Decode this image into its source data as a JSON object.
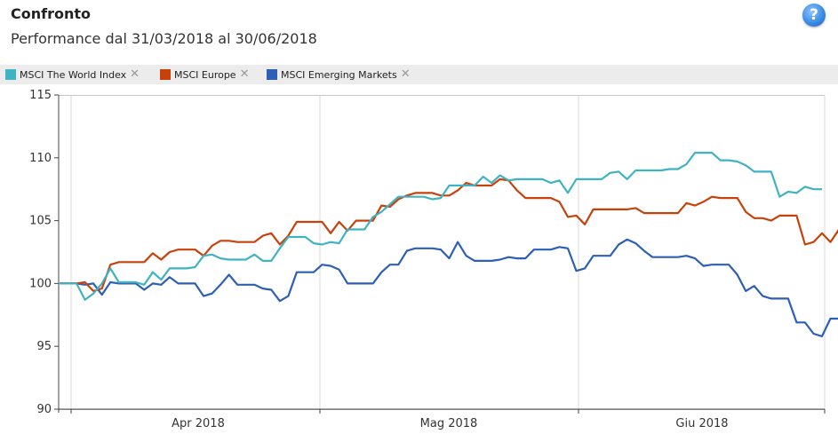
{
  "header": {
    "title": "Confronto",
    "subtitle": "Performance dal 31/03/2018 al 30/06/2018",
    "help_icon": "?"
  },
  "legend": [
    {
      "label": "MSCI The World Index",
      "color": "#3fb3c2",
      "remove_icon": "✕"
    },
    {
      "label": "MSCI Europe",
      "color": "#c8410b",
      "remove_icon": "✕"
    },
    {
      "label": "MSCI Emerging Markets",
      "color": "#2c5fb5",
      "remove_icon": "✕"
    }
  ],
  "chart_data": {
    "type": "line",
    "ylim": [
      90,
      115
    ],
    "yticks": [
      "90",
      "95",
      "100",
      "105",
      "110",
      "115"
    ],
    "xticks": [
      "Apr 2018",
      "Mag 2018",
      "Giu 2018"
    ],
    "grid": "vertical at month starts",
    "series": [
      {
        "name": "MSCI The World Index",
        "color": "#3fb3c2",
        "values": [
          100,
          100,
          100,
          98.7,
          99.2,
          100,
          101.2,
          100.1,
          100.1,
          100.1,
          99.9,
          100.9,
          100.3,
          101.2,
          101.2,
          101.2,
          101.3,
          102.2,
          102.3,
          102,
          101.9,
          101.9,
          101.9,
          102.3,
          101.8,
          101.8,
          102.8,
          103.7,
          103.7,
          103.7,
          103.2,
          103.1,
          103.3,
          103.2,
          104.3,
          104.3,
          104.3,
          105.3,
          105.7,
          106.3,
          106.9,
          106.9,
          106.9,
          106.9,
          106.7,
          106.8,
          107.8,
          107.8,
          107.8,
          107.8,
          108.5,
          108,
          108.6,
          108.2,
          108.3,
          108.3,
          108.3,
          108.3,
          108,
          108.2,
          107.2,
          108.3,
          108.3,
          108.3,
          108.3,
          108.8,
          108.9,
          108.3,
          109,
          109,
          109,
          109,
          109.1,
          109.1,
          109.5,
          110.4,
          110.4,
          110.4,
          109.8,
          109.8,
          109.7,
          109.4,
          108.9,
          108.9,
          108.9,
          106.9,
          107.3,
          107.2,
          107.7,
          107.5,
          107.5
        ]
      },
      {
        "name": "MSCI Europe",
        "color": "#c8410b",
        "values": [
          100,
          100,
          100,
          100.1,
          99.4,
          99.6,
          101.5,
          101.7,
          101.7,
          101.7,
          101.7,
          102.4,
          101.9,
          102.5,
          102.7,
          102.7,
          102.7,
          102.2,
          103,
          103.4,
          103.4,
          103.3,
          103.3,
          103.3,
          103.8,
          104,
          103.1,
          103.8,
          104.9,
          104.9,
          104.9,
          104.9,
          104,
          104.9,
          104.2,
          105,
          105,
          105,
          106.2,
          106.1,
          106.7,
          107,
          107.2,
          107.2,
          107.2,
          107,
          107,
          107.4,
          108,
          107.8,
          107.8,
          107.8,
          108.3,
          108.2,
          107.4,
          106.8,
          106.8,
          106.8,
          106.8,
          106.5,
          105.3,
          105.4,
          104.7,
          105.9,
          105.9,
          105.9,
          105.9,
          105.9,
          106,
          105.6,
          105.6,
          105.6,
          105.6,
          105.6,
          106.4,
          106.2,
          106.5,
          106.9,
          106.8,
          106.8,
          106.8,
          105.7,
          105.2,
          105.2,
          105,
          105.4,
          105.4,
          105.4,
          103.1,
          103.3,
          104,
          103.3,
          104.3,
          104.3
        ]
      },
      {
        "name": "MSCI Emerging Markets",
        "color": "#2c5fb5",
        "values": [
          100,
          100,
          100,
          99.9,
          100,
          99.1,
          100.1,
          100,
          100,
          100,
          99.5,
          100,
          99.9,
          100.5,
          100,
          100,
          100,
          99,
          99.2,
          99.9,
          100.7,
          99.9,
          99.9,
          99.9,
          99.6,
          99.5,
          98.6,
          99,
          100.9,
          100.9,
          100.9,
          101.5,
          101.4,
          101.1,
          100,
          100,
          100,
          100,
          100.9,
          101.5,
          101.5,
          102.6,
          102.8,
          102.8,
          102.8,
          102.7,
          102,
          103.3,
          102.2,
          101.8,
          101.8,
          101.8,
          101.9,
          102.1,
          102,
          102,
          102.7,
          102.7,
          102.7,
          102.9,
          102.8,
          101,
          101.2,
          102.2,
          102.2,
          102.2,
          103.1,
          103.5,
          103.2,
          102.6,
          102.1,
          102.1,
          102.1,
          102.1,
          102.2,
          102,
          101.4,
          101.5,
          101.5,
          101.5,
          100.7,
          99.4,
          99.8,
          99,
          98.8,
          98.8,
          98.8,
          96.9,
          96.9,
          96,
          95.8,
          97.2,
          97.2
        ]
      }
    ]
  }
}
